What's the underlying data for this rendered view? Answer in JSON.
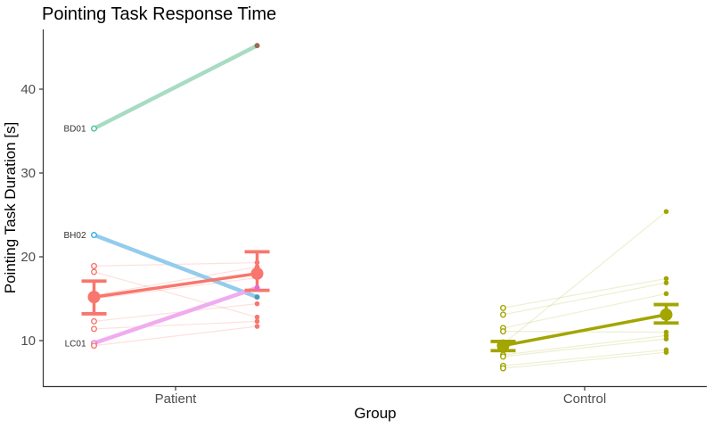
{
  "chart_data": {
    "type": "line",
    "title": "Pointing Task Response Time",
    "xlabel": "Group",
    "ylabel": "Pointing Task Duration [s]",
    "ylim": [
      5.5,
      46.5
    ],
    "yticks": [
      10,
      20,
      30,
      40
    ],
    "categories": [
      "Patient",
      "Control"
    ],
    "timepoints": [
      "pre",
      "post"
    ],
    "grid": false,
    "legend": "none",
    "axis_color": "#333333",
    "tick_label_color": "#4D4D4D",
    "groups": [
      {
        "name": "Patient",
        "color": "#F8766D",
        "faint_line_color": "rgba(248,118,109,0.22)",
        "mean": {
          "pre": 15.2,
          "post": 18.0
        },
        "ci": {
          "pre": [
            13.2,
            17.1
          ],
          "post": [
            16.0,
            20.6
          ]
        },
        "subjects": [
          {
            "id": "BD01",
            "pre": 35.3,
            "post": 45.2,
            "highlight": true,
            "line_color": "#A7DCC2",
            "marker_color": "#50C39B",
            "end_dot_color": "#9C6B54"
          },
          {
            "id": "BH02",
            "pre": 22.6,
            "post": 15.2,
            "highlight": true,
            "line_color": "#93CCEC",
            "marker_color": "#3FAFE4",
            "end_dot_color": "#4E97BC"
          },
          {
            "id": "LC01",
            "pre": 9.7,
            "post": 16.3,
            "highlight": true,
            "line_color": "#F0ACEF",
            "marker_color": "#E873DF",
            "end_dot_color": "#E46BD4"
          },
          {
            "pre": 18.9,
            "post": 19.3
          },
          {
            "pre": 18.2,
            "post": 12.8
          },
          {
            "pre": 15.4,
            "post": 18.8
          },
          {
            "pre": 15.0,
            "post": 17.5
          },
          {
            "pre": 12.3,
            "post": 14.4
          },
          {
            "pre": 11.4,
            "post": 12.3
          },
          {
            "pre": 9.4,
            "post": 11.7
          }
        ]
      },
      {
        "name": "Control",
        "color": "#A3A500",
        "faint_line_color": "rgba(163,165,0,0.18)",
        "mean": {
          "pre": 9.4,
          "post": 13.1
        },
        "ci": {
          "pre": [
            8.8,
            9.9
          ],
          "post": [
            12.1,
            14.3
          ]
        },
        "subjects": [
          {
            "pre": 13.9,
            "post": 17.4
          },
          {
            "pre": 13.1,
            "post": 16.9
          },
          {
            "pre": 11.5,
            "post": 15.6
          },
          {
            "pre": 11.1,
            "post": 11.0
          },
          {
            "pre": 9.6,
            "post": 25.4
          },
          {
            "pre": 8.3,
            "post": 10.6
          },
          {
            "pre": 8.1,
            "post": 10.2
          },
          {
            "pre": 7.0,
            "post": 8.9
          },
          {
            "pre": 6.7,
            "post": 8.6
          }
        ]
      }
    ]
  }
}
